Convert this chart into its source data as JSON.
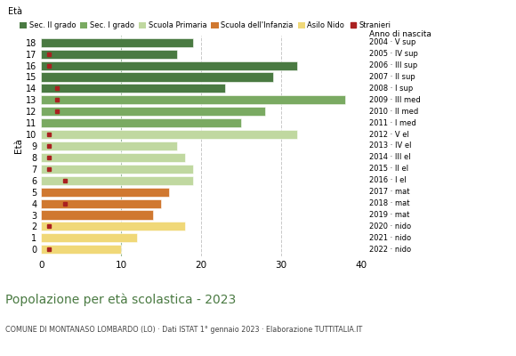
{
  "ages": [
    18,
    17,
    16,
    15,
    14,
    13,
    12,
    11,
    10,
    9,
    8,
    7,
    6,
    5,
    4,
    3,
    2,
    1,
    0
  ],
  "bar_values": [
    19,
    17,
    32,
    29,
    23,
    38,
    28,
    25,
    32,
    17,
    18,
    19,
    19,
    16,
    15,
    14,
    18,
    12,
    10
  ],
  "stranieri": [
    0,
    1,
    1,
    0,
    2,
    2,
    2,
    0,
    1,
    1,
    1,
    1,
    3,
    0,
    3,
    0,
    1,
    0,
    1
  ],
  "anno_nascita": [
    "2004 · V sup",
    "2005 · IV sup",
    "2006 · III sup",
    "2007 · II sup",
    "2008 · I sup",
    "2009 · III med",
    "2010 · II med",
    "2011 · I med",
    "2012 · V el",
    "2013 · IV el",
    "2014 · III el",
    "2015 · II el",
    "2016 · I el",
    "2017 · mat",
    "2018 · mat",
    "2019 · mat",
    "2020 · nido",
    "2021 · nido",
    "2022 · nido"
  ],
  "bar_colors": [
    "#4a7a42",
    "#4a7a42",
    "#4a7a42",
    "#4a7a42",
    "#4a7a42",
    "#7aaa62",
    "#7aaa62",
    "#7aaa62",
    "#c0d8a0",
    "#c0d8a0",
    "#c0d8a0",
    "#c0d8a0",
    "#c0d8a0",
    "#d07830",
    "#d07830",
    "#d07830",
    "#f0d878",
    "#f0d878",
    "#f0d878"
  ],
  "legend_labels": [
    "Sec. II grado",
    "Sec. I grado",
    "Scuola Primaria",
    "Scuola dell'Infanzia",
    "Asilo Nido",
    "Stranieri"
  ],
  "legend_colors": [
    "#4a7a42",
    "#7aaa62",
    "#c0d8a0",
    "#d07830",
    "#f0d878",
    "#aa2020"
  ],
  "stranieri_color": "#aa2020",
  "dashed_line_x": 10,
  "title": "Popolazione per età scolastica - 2023",
  "subtitle": "COMUNE DI MONTANASO LOMBARDO (LO) · Dati ISTAT 1° gennaio 2023 · Elaborazione TUTTITALIA.IT",
  "ylabel": "Età",
  "anno_label": "Anno di nascita",
  "xlim": [
    0,
    40
  ],
  "xticks": [
    0,
    10,
    20,
    30,
    40
  ],
  "grid_color": "#bbbbbb",
  "background_color": "#ffffff",
  "title_color": "#4a7a42",
  "subtitle_color": "#444444"
}
